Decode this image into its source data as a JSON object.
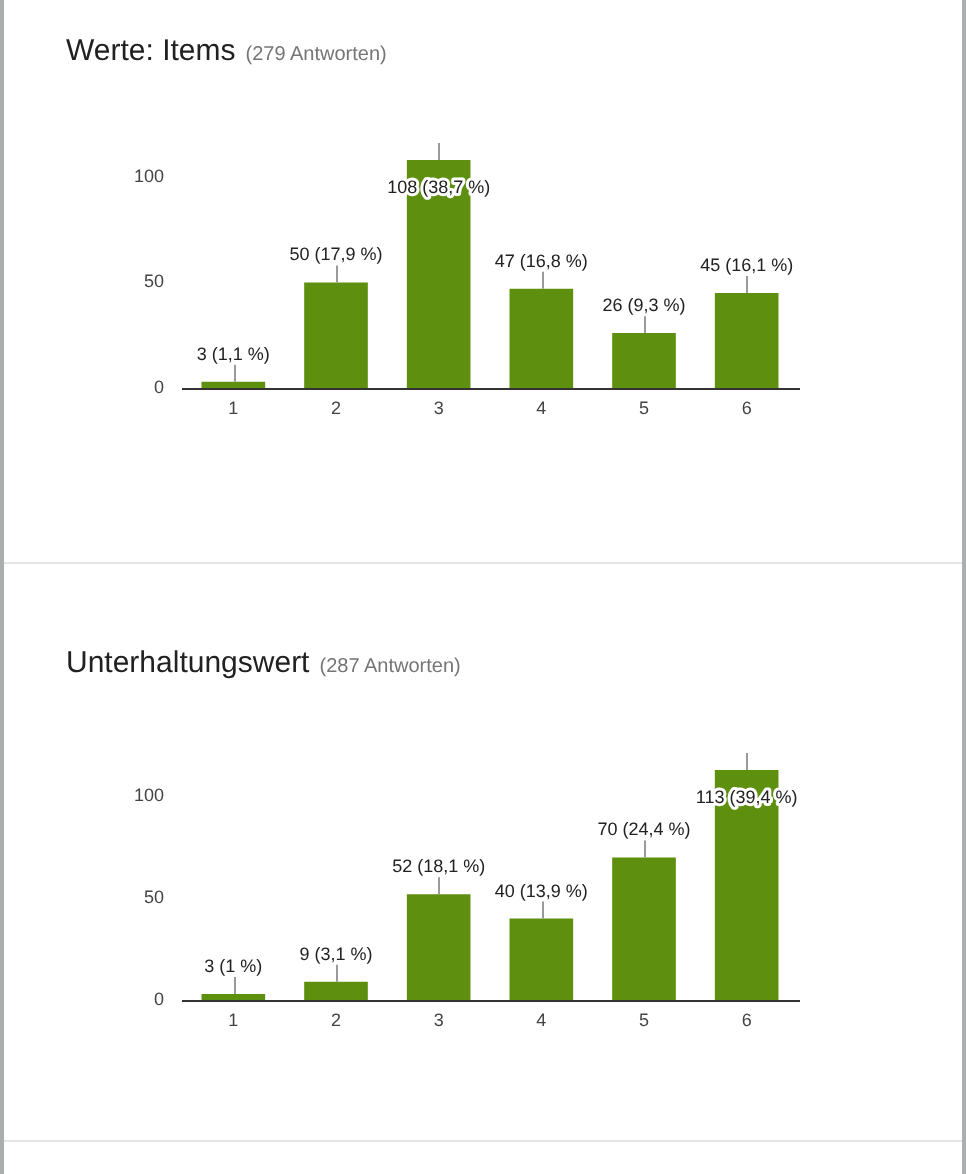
{
  "chart_data": [
    {
      "type": "bar",
      "title": "Werte: Items",
      "subtitle": "(279 Antworten)",
      "categories": [
        "1",
        "2",
        "3",
        "4",
        "5",
        "6"
      ],
      "values": [
        3,
        50,
        108,
        47,
        26,
        45
      ],
      "value_labels": [
        "3 (1,1 %)",
        "50 (17,9 %)",
        "108 (38,7 %)",
        "47 (16,8 %)",
        "26 (9,3 %)",
        "45 (16,1 %)"
      ],
      "color": "#5f8f0f",
      "ylim": [
        0,
        108
      ],
      "yticks": [
        0,
        50,
        100
      ]
    },
    {
      "type": "bar",
      "title": "Unterhaltungswert",
      "subtitle": "(287 Antworten)",
      "categories": [
        "1",
        "2",
        "3",
        "4",
        "5",
        "6"
      ],
      "values": [
        3,
        9,
        52,
        40,
        70,
        113
      ],
      "value_labels": [
        "3 (1 %)",
        "9 (3,1 %)",
        "52 (18,1 %)",
        "40 (13,9 %)",
        "70 (24,4 %)",
        "113 (39,4 %)"
      ],
      "color": "#5f8f0f",
      "ylim": [
        0,
        113
      ],
      "yticks": [
        0,
        50,
        100
      ]
    }
  ]
}
